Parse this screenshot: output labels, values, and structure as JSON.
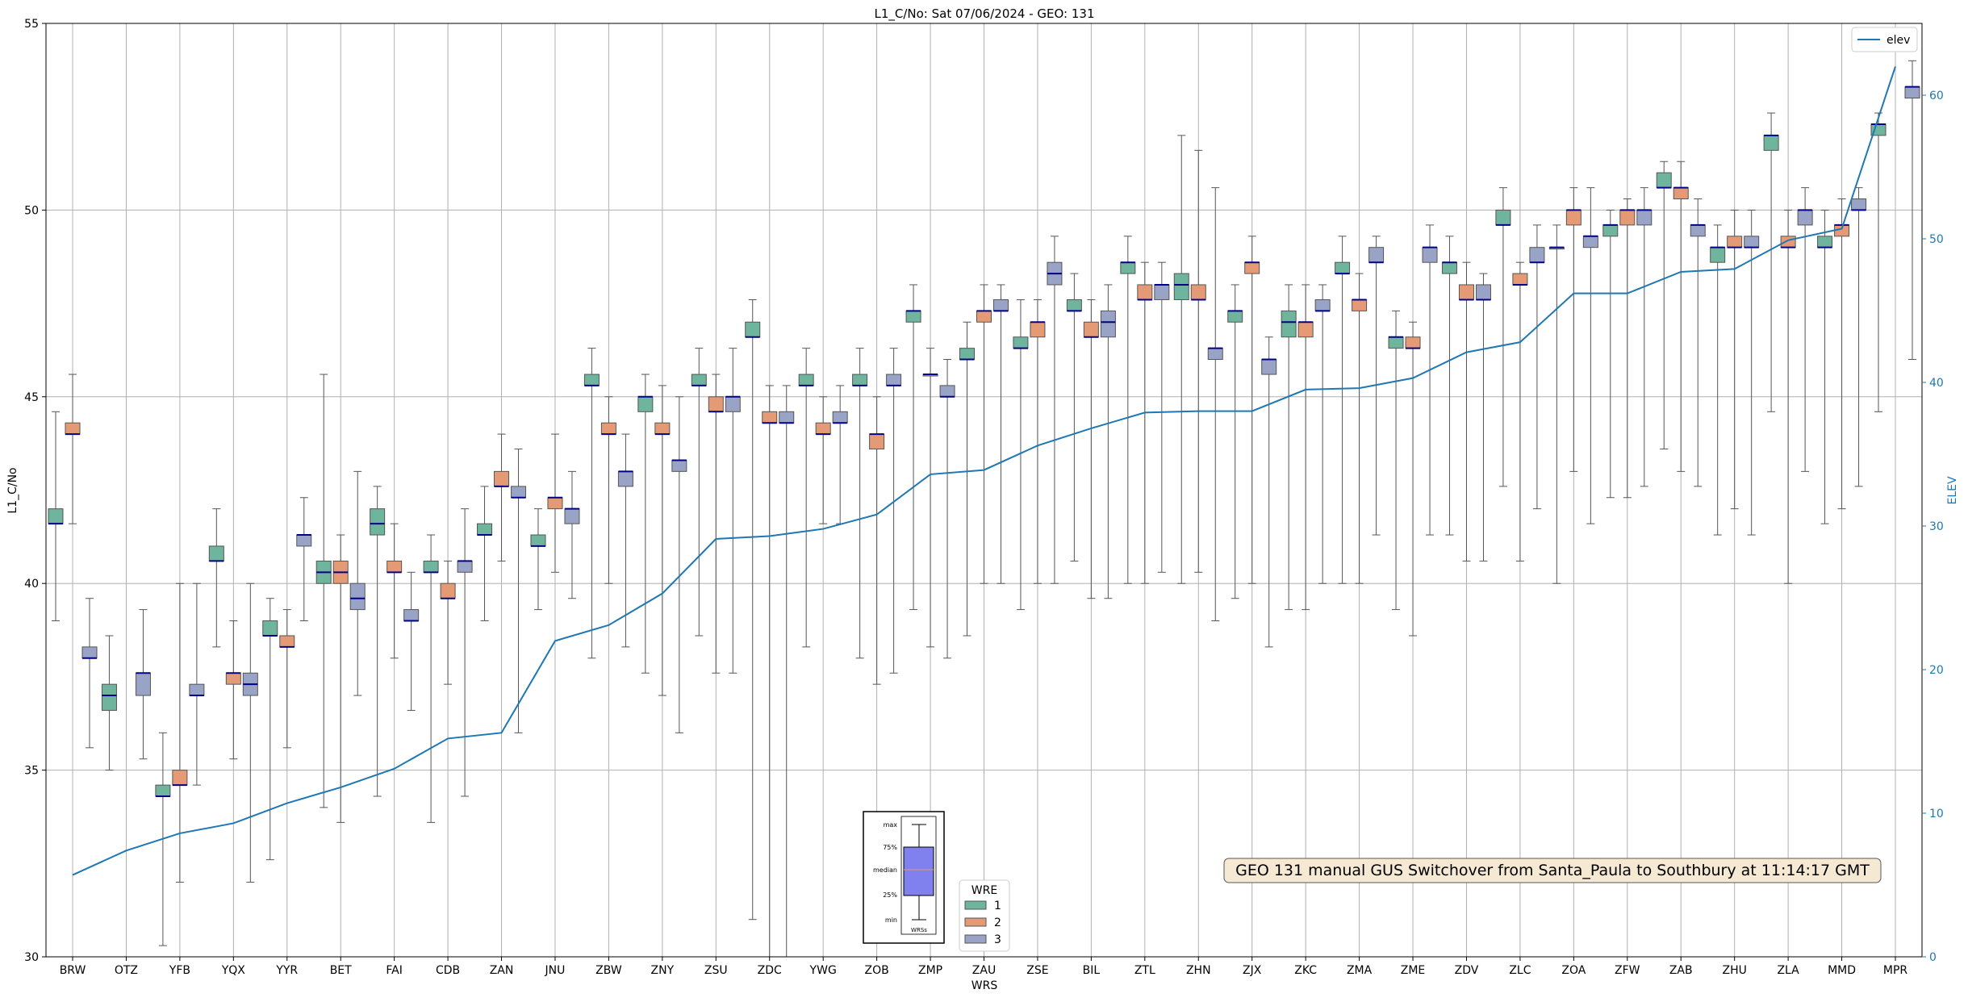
{
  "chart_data": {
    "type": "box",
    "title": "L1_C/No: Sat 07/06/2024 - GEO: 131",
    "xlabel": "WRS",
    "ylabel": "L1_C/No",
    "ylabel_right": "ELEV",
    "ylim": [
      30,
      55
    ],
    "ylim_right": [
      0,
      65
    ],
    "yticks": [
      30,
      35,
      40,
      45,
      50,
      55
    ],
    "yticks_right": [
      0,
      10,
      20,
      30,
      40,
      50,
      60
    ],
    "grid": true,
    "categories": [
      "BRW",
      "OTZ",
      "YFB",
      "YQX",
      "YYR",
      "BET",
      "FAI",
      "CDB",
      "ZAN",
      "JNU",
      "ZBW",
      "ZNY",
      "ZSU",
      "ZDC",
      "YWG",
      "ZOB",
      "ZMP",
      "ZAU",
      "ZSE",
      "BIL",
      "ZTL",
      "ZHN",
      "ZJX",
      "ZKC",
      "ZMA",
      "ZME",
      "ZDV",
      "ZLC",
      "ZOA",
      "ZFW",
      "ZAB",
      "ZHU",
      "ZLA",
      "MMD",
      "MPR"
    ],
    "elev_line": {
      "name": "elev",
      "color": "#1f77b4",
      "values": [
        5.7,
        7.4,
        8.6,
        9.3,
        10.7,
        11.8,
        13.1,
        15.2,
        15.6,
        22.0,
        23.1,
        25.3,
        29.1,
        29.3,
        29.8,
        30.8,
        33.6,
        33.9,
        35.6,
        36.8,
        37.9,
        38.0,
        38.0,
        39.5,
        39.6,
        40.3,
        42.1,
        42.8,
        46.2,
        46.2,
        47.7,
        47.9,
        49.9,
        50.7,
        62.0
      ]
    },
    "box_series": [
      {
        "name": "1",
        "color": "#6fb49c"
      },
      {
        "name": "2",
        "color": "#e59a76"
      },
      {
        "name": "3",
        "color": "#98a3c6"
      }
    ],
    "boxes": [
      {
        "cat": "BRW",
        "wre": 1,
        "min": 39.0,
        "q1": 41.6,
        "median": 41.6,
        "q3": 42.0,
        "max": 44.6
      },
      {
        "cat": "BRW",
        "wre": 2,
        "min": 41.6,
        "q1": 44.0,
        "median": 44.0,
        "q3": 44.3,
        "max": 45.6
      },
      {
        "cat": "BRW",
        "wre": 3,
        "min": 35.6,
        "q1": 38.0,
        "median": 38.0,
        "q3": 38.3,
        "max": 39.6
      },
      {
        "cat": "OTZ",
        "wre": 1,
        "min": 35.0,
        "q1": 36.6,
        "median": 37.0,
        "q3": 37.3,
        "max": 38.6
      },
      {
        "cat": "OTZ",
        "wre": 3,
        "min": 35.3,
        "q1": 37.0,
        "median": 37.6,
        "q3": 37.6,
        "max": 39.3
      },
      {
        "cat": "YFB",
        "wre": 1,
        "min": 30.3,
        "q1": 34.3,
        "median": 34.3,
        "q3": 34.6,
        "max": 36.0
      },
      {
        "cat": "YFB",
        "wre": 2,
        "min": 32.0,
        "q1": 34.6,
        "median": 34.6,
        "q3": 35.0,
        "max": 40.0
      },
      {
        "cat": "YFB",
        "wre": 3,
        "min": 34.6,
        "q1": 37.0,
        "median": 37.0,
        "q3": 37.3,
        "max": 40.0
      },
      {
        "cat": "YQX",
        "wre": 1,
        "min": 38.3,
        "q1": 40.6,
        "median": 40.6,
        "q3": 41.0,
        "max": 42.0
      },
      {
        "cat": "YQX",
        "wre": 2,
        "min": 35.3,
        "q1": 37.3,
        "median": 37.6,
        "q3": 37.6,
        "max": 39.0
      },
      {
        "cat": "YQX",
        "wre": 3,
        "min": 32.0,
        "q1": 37.0,
        "median": 37.3,
        "q3": 37.6,
        "max": 40.0
      },
      {
        "cat": "YYR",
        "wre": 1,
        "min": 32.6,
        "q1": 38.6,
        "median": 38.6,
        "q3": 39.0,
        "max": 39.6
      },
      {
        "cat": "YYR",
        "wre": 2,
        "min": 35.6,
        "q1": 38.3,
        "median": 38.3,
        "q3": 38.6,
        "max": 39.3
      },
      {
        "cat": "YYR",
        "wre": 3,
        "min": 39.0,
        "q1": 41.0,
        "median": 41.3,
        "q3": 41.3,
        "max": 42.3
      },
      {
        "cat": "BET",
        "wre": 1,
        "min": 34.0,
        "q1": 40.0,
        "median": 40.3,
        "q3": 40.6,
        "max": 45.6
      },
      {
        "cat": "BET",
        "wre": 2,
        "min": 33.6,
        "q1": 40.0,
        "median": 40.3,
        "q3": 40.6,
        "max": 41.3
      },
      {
        "cat": "BET",
        "wre": 3,
        "min": 37.0,
        "q1": 39.3,
        "median": 39.6,
        "q3": 40.0,
        "max": 43.0
      },
      {
        "cat": "FAI",
        "wre": 1,
        "min": 34.3,
        "q1": 41.3,
        "median": 41.6,
        "q3": 42.0,
        "max": 42.6
      },
      {
        "cat": "FAI",
        "wre": 2,
        "min": 38.0,
        "q1": 40.3,
        "median": 40.3,
        "q3": 40.6,
        "max": 41.6
      },
      {
        "cat": "FAI",
        "wre": 3,
        "min": 36.6,
        "q1": 39.0,
        "median": 39.0,
        "q3": 39.3,
        "max": 40.3
      },
      {
        "cat": "CDB",
        "wre": 1,
        "min": 33.6,
        "q1": 40.3,
        "median": 40.3,
        "q3": 40.6,
        "max": 41.3
      },
      {
        "cat": "CDB",
        "wre": 2,
        "min": 37.3,
        "q1": 39.6,
        "median": 39.6,
        "q3": 40.0,
        "max": 40.6
      },
      {
        "cat": "CDB",
        "wre": 3,
        "min": 34.3,
        "q1": 40.3,
        "median": 40.6,
        "q3": 40.6,
        "max": 42.0
      },
      {
        "cat": "ZAN",
        "wre": 1,
        "min": 39.0,
        "q1": 41.3,
        "median": 41.3,
        "q3": 41.6,
        "max": 42.6
      },
      {
        "cat": "ZAN",
        "wre": 2,
        "min": 40.6,
        "q1": 42.6,
        "median": 42.6,
        "q3": 43.0,
        "max": 44.0
      },
      {
        "cat": "ZAN",
        "wre": 3,
        "min": 36.0,
        "q1": 42.3,
        "median": 42.3,
        "q3": 42.6,
        "max": 43.6
      },
      {
        "cat": "JNU",
        "wre": 1,
        "min": 39.3,
        "q1": 41.0,
        "median": 41.0,
        "q3": 41.3,
        "max": 42.0
      },
      {
        "cat": "JNU",
        "wre": 2,
        "min": 40.3,
        "q1": 42.0,
        "median": 42.3,
        "q3": 42.3,
        "max": 44.0
      },
      {
        "cat": "JNU",
        "wre": 3,
        "min": 39.6,
        "q1": 41.6,
        "median": 42.0,
        "q3": 42.0,
        "max": 43.0
      },
      {
        "cat": "ZBW",
        "wre": 1,
        "min": 38.0,
        "q1": 45.3,
        "median": 45.3,
        "q3": 45.6,
        "max": 46.3
      },
      {
        "cat": "ZBW",
        "wre": 2,
        "min": 40.0,
        "q1": 44.0,
        "median": 44.0,
        "q3": 44.3,
        "max": 45.0
      },
      {
        "cat": "ZBW",
        "wre": 3,
        "min": 38.3,
        "q1": 42.6,
        "median": 43.0,
        "q3": 43.0,
        "max": 44.0
      },
      {
        "cat": "ZNY",
        "wre": 1,
        "min": 37.6,
        "q1": 44.6,
        "median": 45.0,
        "q3": 45.0,
        "max": 45.6
      },
      {
        "cat": "ZNY",
        "wre": 2,
        "min": 37.0,
        "q1": 44.0,
        "median": 44.0,
        "q3": 44.3,
        "max": 45.3
      },
      {
        "cat": "ZNY",
        "wre": 3,
        "min": 36.0,
        "q1": 43.0,
        "median": 43.3,
        "q3": 43.3,
        "max": 45.0
      },
      {
        "cat": "ZSU",
        "wre": 1,
        "min": 38.6,
        "q1": 45.3,
        "median": 45.3,
        "q3": 45.6,
        "max": 46.3
      },
      {
        "cat": "ZSU",
        "wre": 2,
        "min": 37.6,
        "q1": 44.6,
        "median": 44.6,
        "q3": 45.0,
        "max": 45.6
      },
      {
        "cat": "ZSU",
        "wre": 3,
        "min": 37.6,
        "q1": 44.6,
        "median": 45.0,
        "q3": 45.0,
        "max": 46.3
      },
      {
        "cat": "ZDC",
        "wre": 1,
        "min": 31.0,
        "q1": 46.6,
        "median": 46.6,
        "q3": 47.0,
        "max": 47.6
      },
      {
        "cat": "ZDC",
        "wre": 2,
        "min": 30.0,
        "q1": 44.3,
        "median": 44.3,
        "q3": 44.6,
        "max": 45.3
      },
      {
        "cat": "ZDC",
        "wre": 3,
        "min": 30.0,
        "q1": 44.3,
        "median": 44.3,
        "q3": 44.6,
        "max": 45.3
      },
      {
        "cat": "YWG",
        "wre": 1,
        "min": 38.3,
        "q1": 45.3,
        "median": 45.3,
        "q3": 45.6,
        "max": 46.3
      },
      {
        "cat": "YWG",
        "wre": 2,
        "min": 41.6,
        "q1": 44.0,
        "median": 44.0,
        "q3": 44.3,
        "max": 45.0
      },
      {
        "cat": "YWG",
        "wre": 3,
        "min": 41.6,
        "q1": 44.3,
        "median": 44.3,
        "q3": 44.6,
        "max": 45.3
      },
      {
        "cat": "ZOB",
        "wre": 1,
        "min": 38.0,
        "q1": 45.3,
        "median": 45.3,
        "q3": 45.6,
        "max": 46.3
      },
      {
        "cat": "ZOB",
        "wre": 2,
        "min": 37.3,
        "q1": 43.6,
        "median": 44.0,
        "q3": 44.0,
        "max": 45.0
      },
      {
        "cat": "ZOB",
        "wre": 3,
        "min": 37.6,
        "q1": 45.3,
        "median": 45.3,
        "q3": 45.6,
        "max": 46.3
      },
      {
        "cat": "ZMP",
        "wre": 1,
        "min": 39.3,
        "q1": 47.0,
        "median": 47.3,
        "q3": 47.3,
        "max": 48.0
      },
      {
        "cat": "ZMP",
        "wre": 2,
        "min": 38.3,
        "q1": 45.6,
        "median": 45.6,
        "q3": 45.6,
        "max": 46.3
      },
      {
        "cat": "ZMP",
        "wre": 3,
        "min": 38.0,
        "q1": 45.0,
        "median": 45.0,
        "q3": 45.3,
        "max": 46.0
      },
      {
        "cat": "ZAU",
        "wre": 1,
        "min": 38.6,
        "q1": 46.0,
        "median": 46.0,
        "q3": 46.3,
        "max": 47.0
      },
      {
        "cat": "ZAU",
        "wre": 2,
        "min": 40.0,
        "q1": 47.0,
        "median": 47.3,
        "q3": 47.3,
        "max": 48.0
      },
      {
        "cat": "ZAU",
        "wre": 3,
        "min": 40.0,
        "q1": 47.3,
        "median": 47.3,
        "q3": 47.6,
        "max": 48.0
      },
      {
        "cat": "ZSE",
        "wre": 1,
        "min": 39.3,
        "q1": 46.3,
        "median": 46.3,
        "q3": 46.6,
        "max": 47.6
      },
      {
        "cat": "ZSE",
        "wre": 2,
        "min": 40.0,
        "q1": 46.6,
        "median": 47.0,
        "q3": 47.0,
        "max": 47.6
      },
      {
        "cat": "ZSE",
        "wre": 3,
        "min": 40.0,
        "q1": 48.0,
        "median": 48.3,
        "q3": 48.6,
        "max": 49.3
      },
      {
        "cat": "BIL",
        "wre": 1,
        "min": 40.6,
        "q1": 47.3,
        "median": 47.3,
        "q3": 47.6,
        "max": 48.3
      },
      {
        "cat": "BIL",
        "wre": 2,
        "min": 39.6,
        "q1": 46.6,
        "median": 46.6,
        "q3": 47.0,
        "max": 47.6
      },
      {
        "cat": "BIL",
        "wre": 3,
        "min": 39.6,
        "q1": 46.6,
        "median": 47.0,
        "q3": 47.3,
        "max": 48.0
      },
      {
        "cat": "ZTL",
        "wre": 1,
        "min": 40.0,
        "q1": 48.3,
        "median": 48.6,
        "q3": 48.6,
        "max": 49.3
      },
      {
        "cat": "ZTL",
        "wre": 2,
        "min": 40.0,
        "q1": 47.6,
        "median": 47.6,
        "q3": 48.0,
        "max": 48.6
      },
      {
        "cat": "ZTL",
        "wre": 3,
        "min": 40.3,
        "q1": 47.6,
        "median": 48.0,
        "q3": 48.0,
        "max": 48.6
      },
      {
        "cat": "ZHN",
        "wre": 1,
        "min": 40.0,
        "q1": 47.6,
        "median": 48.0,
        "q3": 48.3,
        "max": 52.0
      },
      {
        "cat": "ZHN",
        "wre": 2,
        "min": 40.3,
        "q1": 47.6,
        "median": 47.6,
        "q3": 48.0,
        "max": 51.6
      },
      {
        "cat": "ZHN",
        "wre": 3,
        "min": 39.0,
        "q1": 46.0,
        "median": 46.3,
        "q3": 46.3,
        "max": 50.6
      },
      {
        "cat": "ZJX",
        "wre": 1,
        "min": 39.6,
        "q1": 47.0,
        "median": 47.3,
        "q3": 47.3,
        "max": 48.0
      },
      {
        "cat": "ZJX",
        "wre": 2,
        "min": 40.0,
        "q1": 48.3,
        "median": 48.6,
        "q3": 48.6,
        "max": 49.3
      },
      {
        "cat": "ZJX",
        "wre": 3,
        "min": 38.3,
        "q1": 45.6,
        "median": 46.0,
        "q3": 46.0,
        "max": 46.6
      },
      {
        "cat": "ZKC",
        "wre": 1,
        "min": 39.3,
        "q1": 46.6,
        "median": 47.0,
        "q3": 47.3,
        "max": 48.0
      },
      {
        "cat": "ZKC",
        "wre": 2,
        "min": 39.3,
        "q1": 46.6,
        "median": 47.0,
        "q3": 47.0,
        "max": 48.0
      },
      {
        "cat": "ZKC",
        "wre": 3,
        "min": 40.0,
        "q1": 47.3,
        "median": 47.3,
        "q3": 47.6,
        "max": 48.0
      },
      {
        "cat": "ZMA",
        "wre": 1,
        "min": 40.0,
        "q1": 48.3,
        "median": 48.3,
        "q3": 48.6,
        "max": 49.3
      },
      {
        "cat": "ZMA",
        "wre": 2,
        "min": 40.0,
        "q1": 47.3,
        "median": 47.6,
        "q3": 47.6,
        "max": 48.3
      },
      {
        "cat": "ZMA",
        "wre": 3,
        "min": 41.3,
        "q1": 48.6,
        "median": 48.6,
        "q3": 49.0,
        "max": 49.3
      },
      {
        "cat": "ZME",
        "wre": 1,
        "min": 39.3,
        "q1": 46.3,
        "median": 46.6,
        "q3": 46.6,
        "max": 47.3
      },
      {
        "cat": "ZME",
        "wre": 2,
        "min": 38.6,
        "q1": 46.3,
        "median": 46.3,
        "q3": 46.6,
        "max": 47.0
      },
      {
        "cat": "ZME",
        "wre": 3,
        "min": 41.3,
        "q1": 48.6,
        "median": 49.0,
        "q3": 49.0,
        "max": 49.6
      },
      {
        "cat": "ZDV",
        "wre": 1,
        "min": 41.3,
        "q1": 48.3,
        "median": 48.6,
        "q3": 48.6,
        "max": 49.3
      },
      {
        "cat": "ZDV",
        "wre": 2,
        "min": 40.6,
        "q1": 47.6,
        "median": 47.6,
        "q3": 48.0,
        "max": 48.6
      },
      {
        "cat": "ZDV",
        "wre": 3,
        "min": 40.6,
        "q1": 47.6,
        "median": 47.6,
        "q3": 48.0,
        "max": 48.3
      },
      {
        "cat": "ZLC",
        "wre": 1,
        "min": 42.6,
        "q1": 49.6,
        "median": 49.6,
        "q3": 50.0,
        "max": 50.6
      },
      {
        "cat": "ZLC",
        "wre": 2,
        "min": 40.6,
        "q1": 48.0,
        "median": 48.0,
        "q3": 48.3,
        "max": 48.6
      },
      {
        "cat": "ZLC",
        "wre": 3,
        "min": 42.0,
        "q1": 48.6,
        "median": 48.6,
        "q3": 49.0,
        "max": 49.6
      },
      {
        "cat": "ZOA",
        "wre": 1,
        "min": 40.0,
        "q1": 49.0,
        "median": 49.0,
        "q3": 49.0,
        "max": 49.6
      },
      {
        "cat": "ZOA",
        "wre": 2,
        "min": 43.0,
        "q1": 49.6,
        "median": 50.0,
        "q3": 50.0,
        "max": 50.6
      },
      {
        "cat": "ZOA",
        "wre": 3,
        "min": 41.6,
        "q1": 49.0,
        "median": 49.3,
        "q3": 49.3,
        "max": 50.6
      },
      {
        "cat": "ZFW",
        "wre": 1,
        "min": 42.3,
        "q1": 49.3,
        "median": 49.6,
        "q3": 49.6,
        "max": 50.0
      },
      {
        "cat": "ZFW",
        "wre": 2,
        "min": 42.3,
        "q1": 49.6,
        "median": 50.0,
        "q3": 50.0,
        "max": 50.3
      },
      {
        "cat": "ZFW",
        "wre": 3,
        "min": 42.6,
        "q1": 49.6,
        "median": 50.0,
        "q3": 50.0,
        "max": 50.6
      },
      {
        "cat": "ZAB",
        "wre": 1,
        "min": 43.6,
        "q1": 50.6,
        "median": 50.6,
        "q3": 51.0,
        "max": 51.3
      },
      {
        "cat": "ZAB",
        "wre": 2,
        "min": 43.0,
        "q1": 50.3,
        "median": 50.6,
        "q3": 50.6,
        "max": 51.3
      },
      {
        "cat": "ZAB",
        "wre": 3,
        "min": 42.6,
        "q1": 49.3,
        "median": 49.6,
        "q3": 49.6,
        "max": 50.3
      },
      {
        "cat": "ZHU",
        "wre": 1,
        "min": 41.3,
        "q1": 48.6,
        "median": 49.0,
        "q3": 49.0,
        "max": 49.6
      },
      {
        "cat": "ZHU",
        "wre": 2,
        "min": 42.0,
        "q1": 49.0,
        "median": 49.0,
        "q3": 49.3,
        "max": 50.0
      },
      {
        "cat": "ZHU",
        "wre": 3,
        "min": 41.3,
        "q1": 49.0,
        "median": 49.0,
        "q3": 49.3,
        "max": 50.0
      },
      {
        "cat": "ZLA",
        "wre": 1,
        "min": 44.6,
        "q1": 51.6,
        "median": 52.0,
        "q3": 52.0,
        "max": 52.6
      },
      {
        "cat": "ZLA",
        "wre": 2,
        "min": 40.0,
        "q1": 49.0,
        "median": 49.0,
        "q3": 49.3,
        "max": 50.0
      },
      {
        "cat": "ZLA",
        "wre": 3,
        "min": 43.0,
        "q1": 49.6,
        "median": 50.0,
        "q3": 50.0,
        "max": 50.6
      },
      {
        "cat": "MMD",
        "wre": 1,
        "min": 41.6,
        "q1": 49.0,
        "median": 49.0,
        "q3": 49.3,
        "max": 50.0
      },
      {
        "cat": "MMD",
        "wre": 2,
        "min": 42.0,
        "q1": 49.3,
        "median": 49.6,
        "q3": 49.6,
        "max": 50.3
      },
      {
        "cat": "MMD",
        "wre": 3,
        "min": 42.6,
        "q1": 50.0,
        "median": 50.0,
        "q3": 50.3,
        "max": 50.6
      },
      {
        "cat": "MPR",
        "wre": 1,
        "min": 44.6,
        "q1": 52.0,
        "median": 52.3,
        "q3": 52.3,
        "max": 52.6
      },
      {
        "cat": "MPR",
        "wre": 3,
        "min": 46.0,
        "q1": 53.0,
        "median": 53.3,
        "q3": 53.3,
        "max": 54.0
      }
    ],
    "legend_elev": {
      "label": "elev",
      "placement": "top-right"
    },
    "legend_wre": {
      "title": "WRE",
      "labels": [
        "1",
        "2",
        "3"
      ],
      "placement": "lower-center"
    },
    "key_box": {
      "labels": [
        "max",
        "75%",
        "median",
        "25%",
        "min"
      ],
      "xlabel": "WRSs",
      "color": "#8080ee"
    },
    "annotation": "GEO 131 manual GUS Switchover from Santa_Paula to Southbury at 11:14:17 GMT"
  }
}
